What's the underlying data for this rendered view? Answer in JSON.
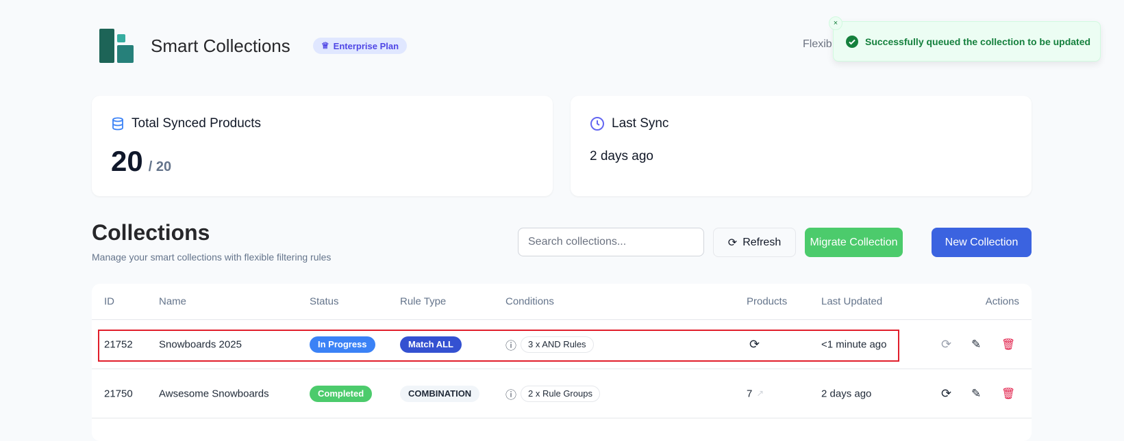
{
  "header": {
    "title": "Smart Collections",
    "plan_badge": "Enterprise Plan",
    "partial_text": "Flexib"
  },
  "toast": {
    "message": "Successfully queued the collection to be updated",
    "close": "×",
    "type": "success"
  },
  "stats": {
    "synced": {
      "label": "Total Synced Products",
      "value": "20",
      "total": "/ 20"
    },
    "last_sync": {
      "label": "Last Sync",
      "value": "2 days ago"
    }
  },
  "collections": {
    "title": "Collections",
    "subtitle": "Manage your smart collections with flexible filtering rules",
    "search_placeholder": "Search collections...",
    "refresh": "Refresh",
    "migrate": "Migrate Collection",
    "new": "New Collection"
  },
  "table": {
    "headers": {
      "id": "ID",
      "name": "Name",
      "status": "Status",
      "rule_type": "Rule Type",
      "conditions": "Conditions",
      "products": "Products",
      "last_updated": "Last Updated",
      "actions": "Actions"
    },
    "rows": [
      {
        "id": "21752",
        "name": "Snowboards 2025",
        "status": "In Progress",
        "rule_type": "Match ALL",
        "conditions": "3 x AND Rules",
        "products": "",
        "last_updated": "<1 minute ago",
        "highlighted": true
      },
      {
        "id": "21750",
        "name": "Awsesome Snowboards",
        "status": "Completed",
        "rule_type": "COMBINATION",
        "conditions": "2 x Rule Groups",
        "products": "7",
        "last_updated": "2 days ago",
        "highlighted": false
      }
    ]
  },
  "colors": {
    "primary": "#3b63e0",
    "success": "#4ccb6c",
    "danger": "#e11d48",
    "highlight": "#e11d2a"
  }
}
